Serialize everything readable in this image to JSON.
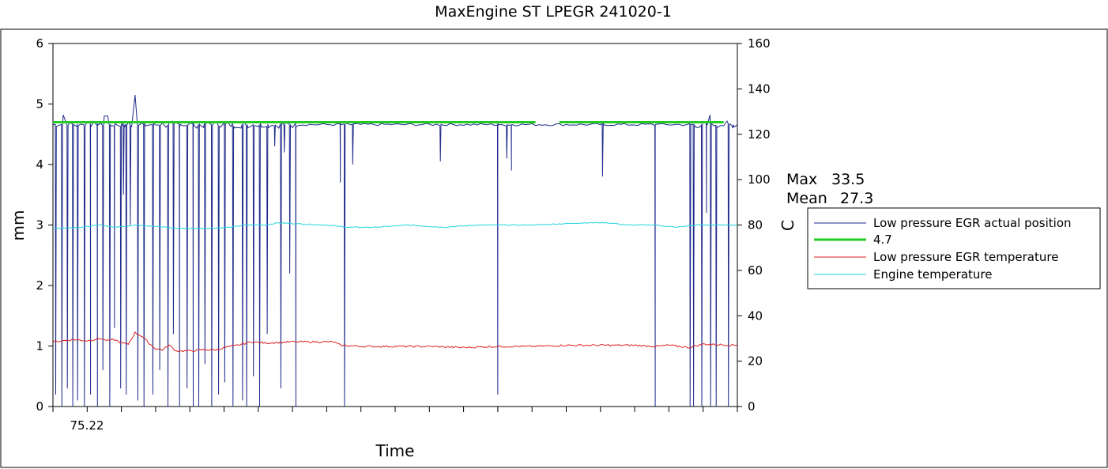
{
  "chart_data": {
    "type": "line",
    "title": "MaxEngine ST   LPEGR 241020-1",
    "xlabel": "Time",
    "ylabel_left": "mm",
    "ylabel_right": "C",
    "x_tick_label": "75.22",
    "y_left": {
      "lim": [
        0,
        6
      ],
      "ticks": [
        0,
        1,
        2,
        3,
        4,
        5,
        6
      ]
    },
    "y_right": {
      "lim": [
        0,
        160
      ],
      "ticks": [
        0,
        20,
        40,
        60,
        80,
        100,
        120,
        140,
        160
      ]
    },
    "stats": {
      "max_label": "Max",
      "max_value": "33.5",
      "mean_label": "Mean",
      "mean_value": "27.3"
    },
    "legend_position": "right",
    "series": [
      {
        "name": "Low pressure EGR actual position",
        "color": "#1f2a8a",
        "axis": "left",
        "baseline": 4.66,
        "drops": [
          [
            0.4,
            0.2
          ],
          [
            1.3,
            0.0
          ],
          [
            2.1,
            0.3
          ],
          [
            2.9,
            0.0
          ],
          [
            3.6,
            0.1
          ],
          [
            4.6,
            0.0
          ],
          [
            5.5,
            0.2
          ],
          [
            6.5,
            0.0
          ],
          [
            7.3,
            0.6
          ],
          [
            8.3,
            0.0
          ],
          [
            9.0,
            1.3
          ],
          [
            9.9,
            0.3
          ],
          [
            10.3,
            3.5
          ],
          [
            10.7,
            0.2
          ],
          [
            11.3,
            3.0
          ],
          [
            12.4,
            0.1
          ],
          [
            13.3,
            0.0
          ],
          [
            14.6,
            0.2
          ],
          [
            15.6,
            0.6
          ],
          [
            16.8,
            0.0
          ],
          [
            17.6,
            1.2
          ],
          [
            18.5,
            0.0
          ],
          [
            19.6,
            0.3
          ],
          [
            20.5,
            0.0
          ],
          [
            21.3,
            0.0
          ],
          [
            22.2,
            0.7
          ],
          [
            23.2,
            0.0
          ],
          [
            24.2,
            0.2
          ],
          [
            25.1,
            0.4
          ],
          [
            26.3,
            0.0
          ],
          [
            27.7,
            0.1
          ],
          [
            28.3,
            0.0
          ],
          [
            29.3,
            0.5
          ],
          [
            30.2,
            0.0
          ],
          [
            31.3,
            1.2
          ],
          [
            32.4,
            4.3
          ],
          [
            33.3,
            0.3
          ],
          [
            33.8,
            4.2
          ],
          [
            34.6,
            2.2
          ],
          [
            35.5,
            0.0
          ],
          [
            42.0,
            3.7
          ],
          [
            42.6,
            0.0
          ],
          [
            43.8,
            4.0
          ],
          [
            56.6,
            4.05
          ],
          [
            65.0,
            0.2
          ],
          [
            66.3,
            4.1
          ],
          [
            67.0,
            3.9
          ],
          [
            80.3,
            3.8
          ],
          [
            88.0,
            0.0
          ],
          [
            93.1,
            0.0
          ],
          [
            93.6,
            0.0
          ],
          [
            94.8,
            0.0
          ],
          [
            95.5,
            3.2
          ],
          [
            96.1,
            0.0
          ],
          [
            96.9,
            0.0
          ],
          [
            98.7,
            0.0
          ],
          [
            99.3,
            4.6
          ]
        ],
        "early_peaks": [
          [
            11.9,
            5.15
          ],
          [
            7.8,
            4.8
          ],
          [
            1.5,
            4.82
          ],
          [
            96.0,
            4.82
          ]
        ]
      },
      {
        "name": "4.7",
        "color": "#22cc22",
        "axis": "left",
        "value": 4.7,
        "x_range": [
          0,
          98
        ],
        "gap": [
          70.5,
          74.0
        ]
      },
      {
        "name": "Low pressure EGR temperature",
        "color": "#dd2222",
        "axis": "right",
        "points": [
          [
            0,
            28.5
          ],
          [
            3,
            29.5
          ],
          [
            5,
            29.0
          ],
          [
            7,
            30.0
          ],
          [
            8,
            29.0
          ],
          [
            9,
            29.5
          ],
          [
            10,
            28.0
          ],
          [
            11,
            27.5
          ],
          [
            12,
            32.5
          ],
          [
            13,
            31.0
          ],
          [
            14,
            28.0
          ],
          [
            15,
            25.5
          ],
          [
            16,
            25.0
          ],
          [
            17,
            27.0
          ],
          [
            18,
            24.5
          ],
          [
            20,
            24.5
          ],
          [
            22,
            25.0
          ],
          [
            24,
            25.0
          ],
          [
            25,
            26.0
          ],
          [
            27,
            27.0
          ],
          [
            29,
            28.5
          ],
          [
            31,
            28.0
          ],
          [
            35,
            28.5
          ],
          [
            41,
            28.5
          ],
          [
            42,
            27.0
          ],
          [
            45,
            26.5
          ],
          [
            50,
            26.5
          ],
          [
            55,
            26.5
          ],
          [
            60,
            26.0
          ],
          [
            65,
            26.5
          ],
          [
            70,
            26.5
          ],
          [
            75,
            27.0
          ],
          [
            80,
            27.0
          ],
          [
            85,
            27.0
          ],
          [
            88,
            26.5
          ],
          [
            90,
            27.0
          ],
          [
            93,
            26.0
          ],
          [
            95,
            27.5
          ],
          [
            100,
            27.0
          ]
        ]
      },
      {
        "name": "Engine temperature",
        "color": "#22d4e0",
        "axis": "right",
        "points": [
          [
            0,
            78.5
          ],
          [
            4,
            79.0
          ],
          [
            7,
            80.0
          ],
          [
            9,
            79.0
          ],
          [
            12,
            80.0
          ],
          [
            15,
            79.5
          ],
          [
            18,
            78.5
          ],
          [
            22,
            78.5
          ],
          [
            26,
            79.0
          ],
          [
            28,
            80.0
          ],
          [
            31,
            80.0
          ],
          [
            33,
            81.0
          ],
          [
            36,
            80.5
          ],
          [
            40,
            80.0
          ],
          [
            43,
            79.0
          ],
          [
            47,
            79.0
          ],
          [
            52,
            80.0
          ],
          [
            57,
            79.0
          ],
          [
            62,
            80.0
          ],
          [
            66,
            80.0
          ],
          [
            70,
            80.0
          ],
          [
            74,
            80.5
          ],
          [
            78,
            81.0
          ],
          [
            81,
            81.0
          ],
          [
            84,
            80.0
          ],
          [
            88,
            80.0
          ],
          [
            91,
            79.0
          ],
          [
            94,
            80.0
          ],
          [
            97,
            80.0
          ],
          [
            100,
            80.0
          ]
        ]
      }
    ]
  }
}
